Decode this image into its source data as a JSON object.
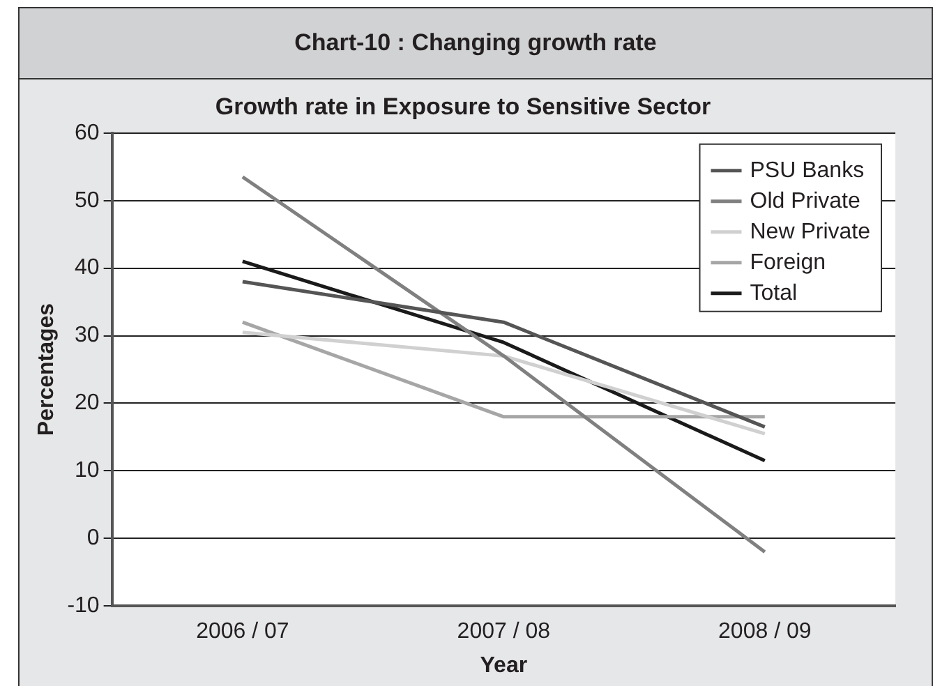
{
  "chart_data": {
    "type": "line",
    "title": "Chart-10 : Changing growth rate",
    "subtitle": "Growth rate in Exposure to Sensitive Sector",
    "xlabel": "Year",
    "ylabel": "Percentages",
    "categories": [
      "2006 / 07",
      "2007 / 08",
      "2008 / 09"
    ],
    "series": [
      {
        "name": "PSU Banks",
        "color": "#555555",
        "values": [
          38,
          32,
          16.5
        ]
      },
      {
        "name": "Old Private",
        "color": "#808080",
        "values": [
          53.5,
          27,
          -2
        ]
      },
      {
        "name": "New Private",
        "color": "#d0d0d0",
        "values": [
          30.5,
          27,
          15.5
        ]
      },
      {
        "name": "Foreign",
        "color": "#a6a6a6",
        "values": [
          32,
          18,
          18
        ]
      },
      {
        "name": "Total",
        "color": "#1a1a1a",
        "values": [
          41,
          29,
          11.5
        ]
      }
    ],
    "ylim": [
      -10,
      60
    ],
    "yticks": [
      -10,
      0,
      10,
      20,
      30,
      40,
      50,
      60
    ],
    "grid": "y",
    "legend": "top right",
    "marker": "none",
    "line_style": "solid"
  }
}
